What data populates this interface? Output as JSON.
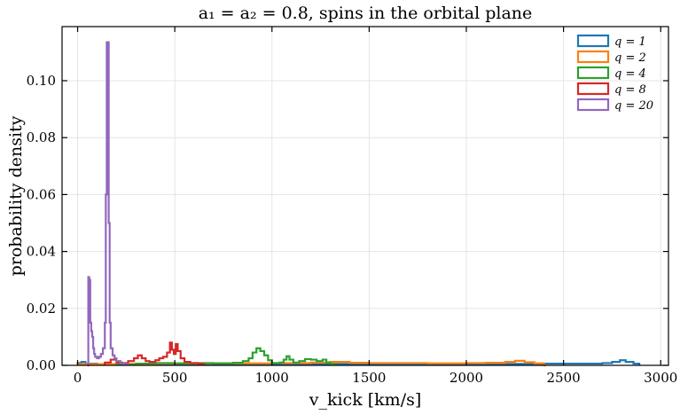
{
  "chart_data": {
    "type": "histogram-step",
    "title": "a₁ = a₂ = 0.8, spins in the orbital plane",
    "xlabel": "v_kick [km/s]",
    "ylabel": "probability density",
    "xlim": [
      -80,
      3040
    ],
    "ylim": [
      0,
      0.119
    ],
    "xticks": [
      0,
      500,
      1000,
      1500,
      2000,
      2500,
      3000
    ],
    "yticks": [
      0.0,
      0.02,
      0.04,
      0.06,
      0.08,
      0.1
    ],
    "xtick_labels": [
      "0",
      "500",
      "1000",
      "1500",
      "2000",
      "2500",
      "3000"
    ],
    "ytick_labels": [
      "0.00",
      "0.02",
      "0.04",
      "0.06",
      "0.08",
      "0.10"
    ],
    "grid": true,
    "legend_position": "top-right",
    "series": [
      {
        "name": "q = 1",
        "color": "#1f77b4",
        "points": [
          [
            0,
            0.0008
          ],
          [
            20,
            0.0012
          ],
          [
            40,
            0.0006
          ],
          [
            100,
            0.0004
          ],
          [
            200,
            0.0004
          ],
          [
            400,
            0.0004
          ],
          [
            600,
            0.0005
          ],
          [
            800,
            0.0005
          ],
          [
            1000,
            0.0005
          ],
          [
            1200,
            0.0005
          ],
          [
            1400,
            0.0005
          ],
          [
            1600,
            0.0005
          ],
          [
            1800,
            0.0005
          ],
          [
            2000,
            0.0005
          ],
          [
            2200,
            0.0005
          ],
          [
            2400,
            0.0006
          ],
          [
            2600,
            0.0006
          ],
          [
            2700,
            0.0008
          ],
          [
            2750,
            0.0012
          ],
          [
            2790,
            0.0018
          ],
          [
            2820,
            0.0012
          ],
          [
            2860,
            0.0006
          ],
          [
            2890,
            0.0
          ]
        ]
      },
      {
        "name": "q = 2",
        "color": "#ff7f0e",
        "points": [
          [
            0,
            0.0004
          ],
          [
            200,
            0.0005
          ],
          [
            400,
            0.0006
          ],
          [
            600,
            0.0007
          ],
          [
            800,
            0.0007
          ],
          [
            1000,
            0.0008
          ],
          [
            1200,
            0.001
          ],
          [
            1300,
            0.0012
          ],
          [
            1400,
            0.0009
          ],
          [
            1500,
            0.0008
          ],
          [
            1600,
            0.0008
          ],
          [
            1800,
            0.0007
          ],
          [
            2000,
            0.0008
          ],
          [
            2100,
            0.0009
          ],
          [
            2200,
            0.0012
          ],
          [
            2250,
            0.0016
          ],
          [
            2300,
            0.0011
          ],
          [
            2350,
            0.0007
          ],
          [
            2400,
            0.0
          ],
          [
            2410,
            0.0
          ]
        ]
      },
      {
        "name": "q = 4",
        "color": "#2ca02c",
        "points": [
          [
            200,
            0.0002
          ],
          [
            300,
            0.0006
          ],
          [
            400,
            0.0008
          ],
          [
            500,
            0.0007
          ],
          [
            600,
            0.0008
          ],
          [
            700,
            0.0007
          ],
          [
            800,
            0.0009
          ],
          [
            850,
            0.0015
          ],
          [
            880,
            0.0025
          ],
          [
            900,
            0.0045
          ],
          [
            920,
            0.006
          ],
          [
            940,
            0.005
          ],
          [
            960,
            0.0035
          ],
          [
            980,
            0.0018
          ],
          [
            1000,
            0.0008
          ],
          [
            1040,
            0.001
          ],
          [
            1060,
            0.002
          ],
          [
            1075,
            0.0032
          ],
          [
            1090,
            0.002
          ],
          [
            1110,
            0.001
          ],
          [
            1140,
            0.0015
          ],
          [
            1170,
            0.0022
          ],
          [
            1200,
            0.002
          ],
          [
            1230,
            0.0015
          ],
          [
            1260,
            0.002
          ],
          [
            1280,
            0.001
          ],
          [
            1300,
            0.0005
          ],
          [
            1330,
            0.0
          ]
        ]
      },
      {
        "name": "q = 8",
        "color": "#d62728",
        "points": [
          [
            140,
            0.001
          ],
          [
            170,
            0.002
          ],
          [
            200,
            0.001
          ],
          [
            230,
            0.0008
          ],
          [
            260,
            0.0015
          ],
          [
            290,
            0.0025
          ],
          [
            310,
            0.0035
          ],
          [
            330,
            0.0025
          ],
          [
            350,
            0.0015
          ],
          [
            370,
            0.0012
          ],
          [
            400,
            0.0018
          ],
          [
            420,
            0.0025
          ],
          [
            440,
            0.003
          ],
          [
            460,
            0.0045
          ],
          [
            475,
            0.008
          ],
          [
            485,
            0.0055
          ],
          [
            495,
            0.004
          ],
          [
            505,
            0.0075
          ],
          [
            515,
            0.005
          ],
          [
            530,
            0.0025
          ],
          [
            550,
            0.0012
          ],
          [
            580,
            0.0008
          ],
          [
            620,
            0.0005
          ],
          [
            650,
            0.0
          ]
        ]
      },
      {
        "name": "q = 20",
        "color": "#9467bd",
        "points": [
          [
            50,
            0.0
          ],
          [
            55,
            0.031
          ],
          [
            60,
            0.03
          ],
          [
            65,
            0.015
          ],
          [
            70,
            0.012
          ],
          [
            75,
            0.01
          ],
          [
            80,
            0.006
          ],
          [
            85,
            0.004
          ],
          [
            90,
            0.003
          ],
          [
            100,
            0.0025
          ],
          [
            110,
            0.003
          ],
          [
            120,
            0.004
          ],
          [
            130,
            0.006
          ],
          [
            140,
            0.015
          ],
          [
            145,
            0.06
          ],
          [
            150,
            0.1135
          ],
          [
            155,
            0.1135
          ],
          [
            160,
            0.05
          ],
          [
            165,
            0.015
          ],
          [
            170,
            0.006
          ],
          [
            180,
            0.0035
          ],
          [
            190,
            0.0025
          ],
          [
            200,
            0.0015
          ],
          [
            220,
            0.0008
          ],
          [
            240,
            0.0004
          ],
          [
            260,
            0.0
          ]
        ]
      }
    ]
  }
}
